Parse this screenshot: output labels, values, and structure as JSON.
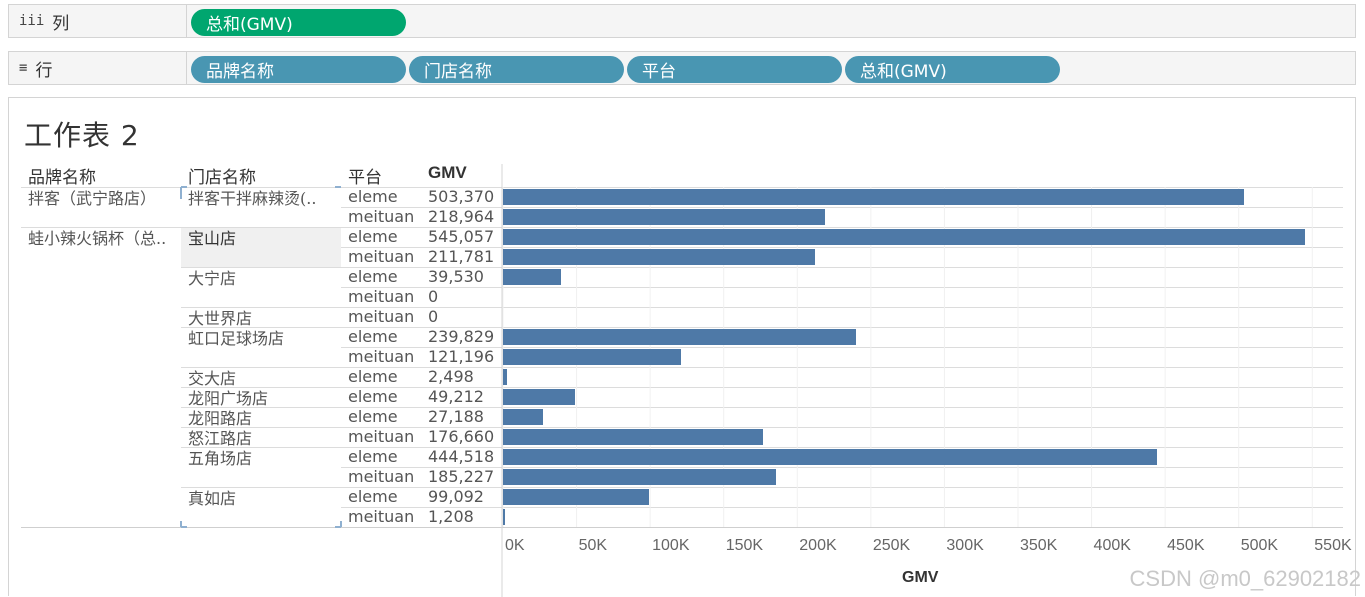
{
  "shelves": {
    "columns": {
      "icon": "iii",
      "label": "列",
      "pills": [
        "总和(GMV)"
      ]
    },
    "rows": {
      "icon": "≡",
      "label": "行",
      "pills": [
        "品牌名称",
        "门店名称",
        "平台",
        "总和(GMV)"
      ]
    }
  },
  "sheet": {
    "title": "工作表 2",
    "headers": {
      "brand": "品牌名称",
      "store": "门店名称",
      "platform": "平台",
      "gmv": "GMV"
    }
  },
  "chart_data": {
    "type": "bar",
    "orientation": "horizontal",
    "xlabel": "GMV",
    "xlim": [
      0,
      550000
    ],
    "xticks": [
      "0K",
      "50K",
      "100K",
      "150K",
      "200K",
      "250K",
      "300K",
      "350K",
      "400K",
      "450K",
      "500K",
      "550K"
    ],
    "color": "#4e79a7",
    "rows": [
      {
        "brand": "拌客（武宁路店）",
        "store": "拌客干拌麻辣烫(..",
        "platform": "eleme",
        "label": "503,370",
        "value": 503370
      },
      {
        "brand": "",
        "store": "",
        "platform": "meituan",
        "label": "218,964",
        "value": 218964
      },
      {
        "brand": "蛙小辣火锅杯（总..",
        "store": "宝山店",
        "platform": "eleme",
        "label": "545,057",
        "value": 545057
      },
      {
        "brand": "",
        "store": "",
        "platform": "meituan",
        "label": "211,781",
        "value": 211781
      },
      {
        "brand": "",
        "store": "大宁店",
        "platform": "eleme",
        "label": "39,530",
        "value": 39530
      },
      {
        "brand": "",
        "store": "",
        "platform": "meituan",
        "label": "0",
        "value": 0
      },
      {
        "brand": "",
        "store": "大世界店",
        "platform": "meituan",
        "label": "0",
        "value": 0
      },
      {
        "brand": "",
        "store": "虹口足球场店",
        "platform": "eleme",
        "label": "239,829",
        "value": 239829
      },
      {
        "brand": "",
        "store": "",
        "platform": "meituan",
        "label": "121,196",
        "value": 121196
      },
      {
        "brand": "",
        "store": "交大店",
        "platform": "eleme",
        "label": "2,498",
        "value": 2498
      },
      {
        "brand": "",
        "store": "龙阳广场店",
        "platform": "eleme",
        "label": "49,212",
        "value": 49212
      },
      {
        "brand": "",
        "store": "龙阳路店",
        "platform": "eleme",
        "label": "27,188",
        "value": 27188
      },
      {
        "brand": "",
        "store": "怒江路店",
        "platform": "meituan",
        "label": "176,660",
        "value": 176660
      },
      {
        "brand": "",
        "store": "五角场店",
        "platform": "eleme",
        "label": "444,518",
        "value": 444518
      },
      {
        "brand": "",
        "store": "",
        "platform": "meituan",
        "label": "185,227",
        "value": 185227
      },
      {
        "brand": "",
        "store": "真如店",
        "platform": "eleme",
        "label": "99,092",
        "value": 99092
      },
      {
        "brand": "",
        "store": "",
        "platform": "meituan",
        "label": "1,208",
        "value": 1208
      }
    ]
  },
  "watermark": "CSDN @m0_62902182"
}
